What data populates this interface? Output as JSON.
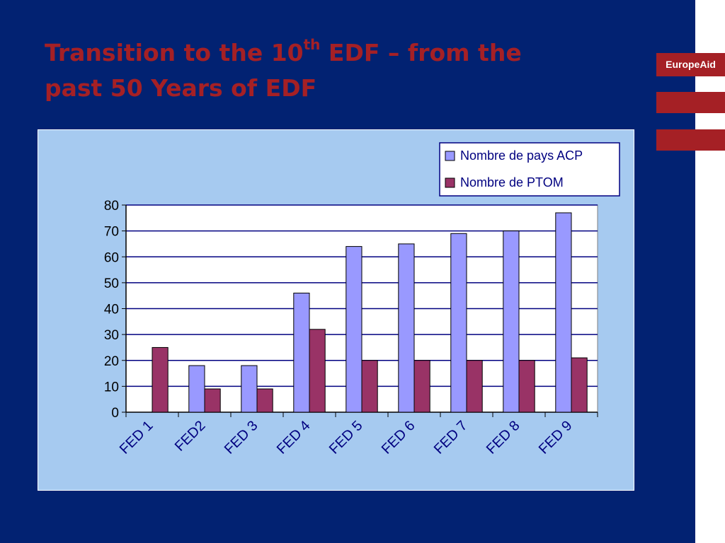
{
  "slide": {
    "title_line1_part1": "Transition to the 10",
    "title_sup": "th",
    "title_line1_part2": " EDF – from the",
    "title_line2": "past 50 Years of EDF",
    "brand": "EuropeAid"
  },
  "colors": {
    "background": "#022272",
    "title": "#a52025",
    "brand": "#a52025",
    "panel": "#a6caf0",
    "series_acp": "#9999ff",
    "series_ptom": "#993366"
  },
  "chart_data": {
    "type": "bar",
    "categories": [
      "FED 1",
      "FED2",
      "FED 3",
      "FED 4",
      "FED 5",
      "FED 6",
      "FED 7",
      "FED 8",
      "FED 9"
    ],
    "series": [
      {
        "name": "Nombre de pays ACP",
        "values": [
          0,
          18,
          18,
          46,
          64,
          65,
          69,
          70,
          77
        ]
      },
      {
        "name": "Nombre de PTOM",
        "values": [
          25,
          9,
          9,
          32,
          20,
          20,
          20,
          20,
          21
        ]
      }
    ],
    "ylim": [
      0,
      80
    ],
    "yticks": [
      0,
      10,
      20,
      30,
      40,
      50,
      60,
      70,
      80
    ],
    "grid": true,
    "legend_position": "top-right"
  }
}
